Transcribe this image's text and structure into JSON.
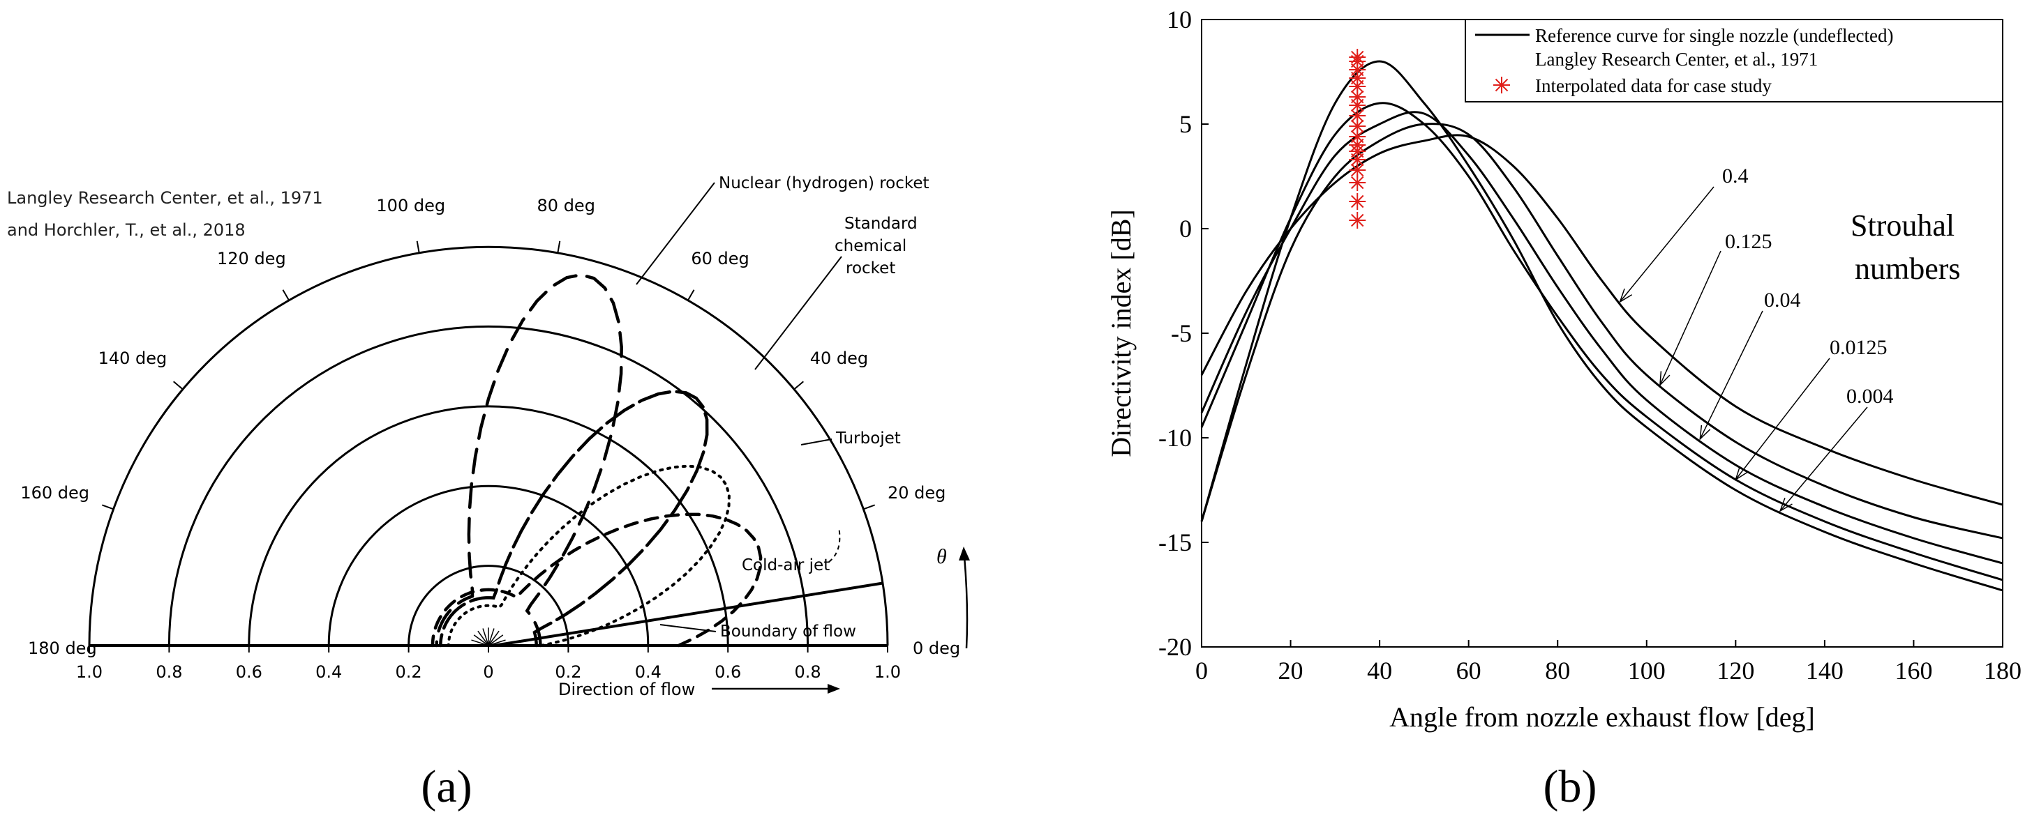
{
  "panel_labels": [
    "(a)",
    "(b)"
  ],
  "chart_data": [
    {
      "type": "polar",
      "panel": "(a)",
      "source": [
        "Langley Research Center, et al., 1971",
        "and Horchler, T., et al., 2018"
      ],
      "radial_range": [
        0,
        1.0
      ],
      "radial_ticks": [
        "1.0",
        "0.8",
        "0.6",
        "0.4",
        "0.2",
        "0",
        "0.2",
        "0.4",
        "0.6",
        "0.8",
        "1.0"
      ],
      "ring_radii": [
        0.2,
        0.4,
        0.6,
        0.8,
        1.0
      ],
      "angle_labels": [
        {
          "deg": 180,
          "label": "180 deg"
        },
        {
          "deg": 160,
          "label": "160 deg"
        },
        {
          "deg": 140,
          "label": "140 deg"
        },
        {
          "deg": 120,
          "label": "120 deg"
        },
        {
          "deg": 100,
          "label": "100 deg"
        },
        {
          "deg": 80,
          "label": "80 deg"
        },
        {
          "deg": 60,
          "label": "60 deg"
        },
        {
          "deg": 40,
          "label": "40 deg"
        },
        {
          "deg": 20,
          "label": "20 deg"
        },
        {
          "deg": 0,
          "label": "0 deg"
        }
      ],
      "xlabel": "Direction of flow",
      "theta_symbol": "θ",
      "boundary_label": "Boundary of flow",
      "boundary_line": {
        "angle_deg": 9,
        "radius": 1.0
      },
      "series": [
        {
          "name": "Nuclear (hydrogen) rocket",
          "style": "long-dash",
          "peak_angle_deg": 75,
          "peak_radius": 0.96
        },
        {
          "name": "Standard chemical rocket",
          "style": "solid-dash",
          "peak_angle_deg": 50,
          "peak_radius": 0.81
        },
        {
          "name": "Turbojet",
          "style": "dotted",
          "peak_angle_deg": 35,
          "peak_radius": 0.72
        },
        {
          "name": "Cold-air jet",
          "style": "short-dash",
          "peak_angle_deg": 20,
          "peak_radius": 0.72
        }
      ],
      "annotations": [
        "Nuclear (hydrogen) rocket",
        "Standard chemical rocket",
        "Turbojet",
        "Cold-air jet"
      ]
    },
    {
      "type": "line",
      "panel": "(b)",
      "xlabel": "Angle from nozzle exhaust flow [deg]",
      "ylabel": "Directivity index [dB]",
      "xlim": [
        0,
        180
      ],
      "ylim": [
        -20,
        10
      ],
      "xticks": [
        0,
        20,
        40,
        60,
        80,
        100,
        120,
        140,
        160,
        180
      ],
      "yticks": [
        10,
        5,
        0,
        -5,
        -10,
        -15,
        -20
      ],
      "legend": {
        "position": "top-right",
        "entries": [
          "Reference curve for single nozzle (undeflected)",
          "Langley Research Center, et al., 1971",
          "Interpolated data for case study"
        ]
      },
      "strouhal_title": [
        "Strouhal",
        "numbers"
      ],
      "series": [
        {
          "name": "0.004",
          "x": [
            0,
            10,
            20,
            30,
            40,
            50,
            60,
            70,
            80,
            90,
            100,
            120,
            140,
            160,
            180
          ],
          "y": [
            -14,
            -6.5,
            0.5,
            6,
            8,
            6,
            3,
            -0.5,
            -4.5,
            -7.5,
            -9.5,
            -12.5,
            -14.5,
            -16,
            -17.3
          ]
        },
        {
          "name": "0.0125",
          "x": [
            0,
            10,
            20,
            30,
            40,
            50,
            60,
            70,
            80,
            90,
            100,
            120,
            140,
            160,
            180
          ],
          "y": [
            -9.5,
            -4.5,
            0.5,
            4.5,
            6,
            5,
            2.5,
            -1,
            -4.2,
            -7,
            -9,
            -12,
            -14,
            -15.5,
            -16.8
          ]
        },
        {
          "name": "0.04",
          "x": [
            0,
            10,
            20,
            30,
            40,
            50,
            60,
            70,
            80,
            90,
            100,
            120,
            140,
            160,
            180
          ],
          "y": [
            -8.8,
            -4,
            0,
            3.5,
            5,
            5.5,
            3.5,
            0.5,
            -2.8,
            -5.8,
            -8.2,
            -11.3,
            -13.3,
            -14.8,
            -16
          ]
        },
        {
          "name": "0.125",
          "x": [
            0,
            10,
            20,
            30,
            40,
            50,
            60,
            70,
            80,
            90,
            100,
            120,
            140,
            160,
            180
          ],
          "y": [
            -14,
            -7,
            -1,
            2.5,
            4.2,
            5,
            4.5,
            2,
            -1.3,
            -4.5,
            -7,
            -10.2,
            -12.3,
            -13.8,
            -14.8
          ]
        },
        {
          "name": "0.4",
          "x": [
            0,
            10,
            20,
            30,
            40,
            50,
            60,
            70,
            80,
            90,
            100,
            120,
            140,
            160,
            180
          ],
          "y": [
            -7,
            -3,
            0,
            2.2,
            3.6,
            4.2,
            4.4,
            3,
            0.5,
            -2.5,
            -5,
            -8.5,
            -10.5,
            -12,
            -13.2
          ]
        }
      ],
      "strouhal_labels": [
        "0.4",
        "0.125",
        "0.04",
        "0.0125",
        "0.004"
      ],
      "interpolated_points": {
        "x": 35,
        "y": [
          0.4,
          1.3,
          2.2,
          2.8,
          3.3,
          3.7,
          4,
          4.4,
          4.9,
          5.4,
          5.9,
          6.3,
          6.8,
          7.2,
          7.6,
          8,
          8.2
        ]
      }
    }
  ]
}
